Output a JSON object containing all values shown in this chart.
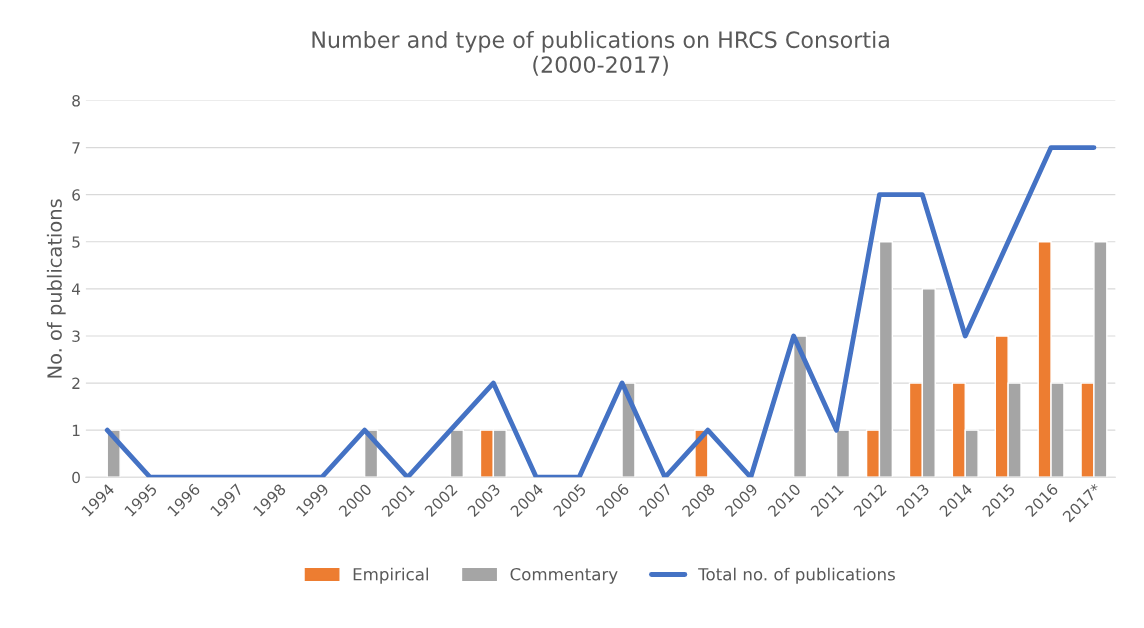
{
  "chart_data": {
    "type": "bar",
    "title": "Number and type of publications on HRCS Consortia\n(2000-2017)",
    "ylabel": "No. of publications",
    "categories": [
      "1994",
      "1995",
      "1996",
      "1997",
      "1998",
      "1999",
      "2000",
      "2001",
      "2002",
      "2003",
      "2004",
      "2005",
      "2006",
      "2007",
      "2008",
      "2009",
      "2010",
      "2011",
      "2012",
      "2013",
      "2014",
      "2015",
      "2016",
      "2017*"
    ],
    "series": [
      {
        "name": "Empirical",
        "color": "#ed7d31",
        "values": [
          null,
          null,
          null,
          null,
          null,
          null,
          null,
          null,
          null,
          1,
          null,
          null,
          null,
          null,
          1,
          null,
          null,
          null,
          1,
          2,
          2,
          3,
          5,
          2
        ]
      },
      {
        "name": "Commentary",
        "color": "#a5a5a5",
        "values": [
          1,
          null,
          null,
          null,
          null,
          null,
          1,
          null,
          1,
          1,
          null,
          null,
          2,
          null,
          null,
          null,
          3,
          1,
          5,
          4,
          1,
          2,
          2,
          5
        ]
      },
      {
        "name": "Total no. of publications",
        "type": "line",
        "color": "#4472c4",
        "values": [
          1,
          0,
          0,
          0,
          0,
          0,
          1,
          0,
          1,
          2,
          0,
          0,
          2,
          0,
          1,
          0,
          3,
          1,
          6,
          6,
          3,
          5,
          7,
          7
        ]
      }
    ],
    "ylim": [
      0,
      8
    ],
    "yticks": [
      0,
      1,
      2,
      3,
      4,
      5,
      6,
      7,
      8
    ],
    "grid": "y",
    "legend": "bottom"
  }
}
